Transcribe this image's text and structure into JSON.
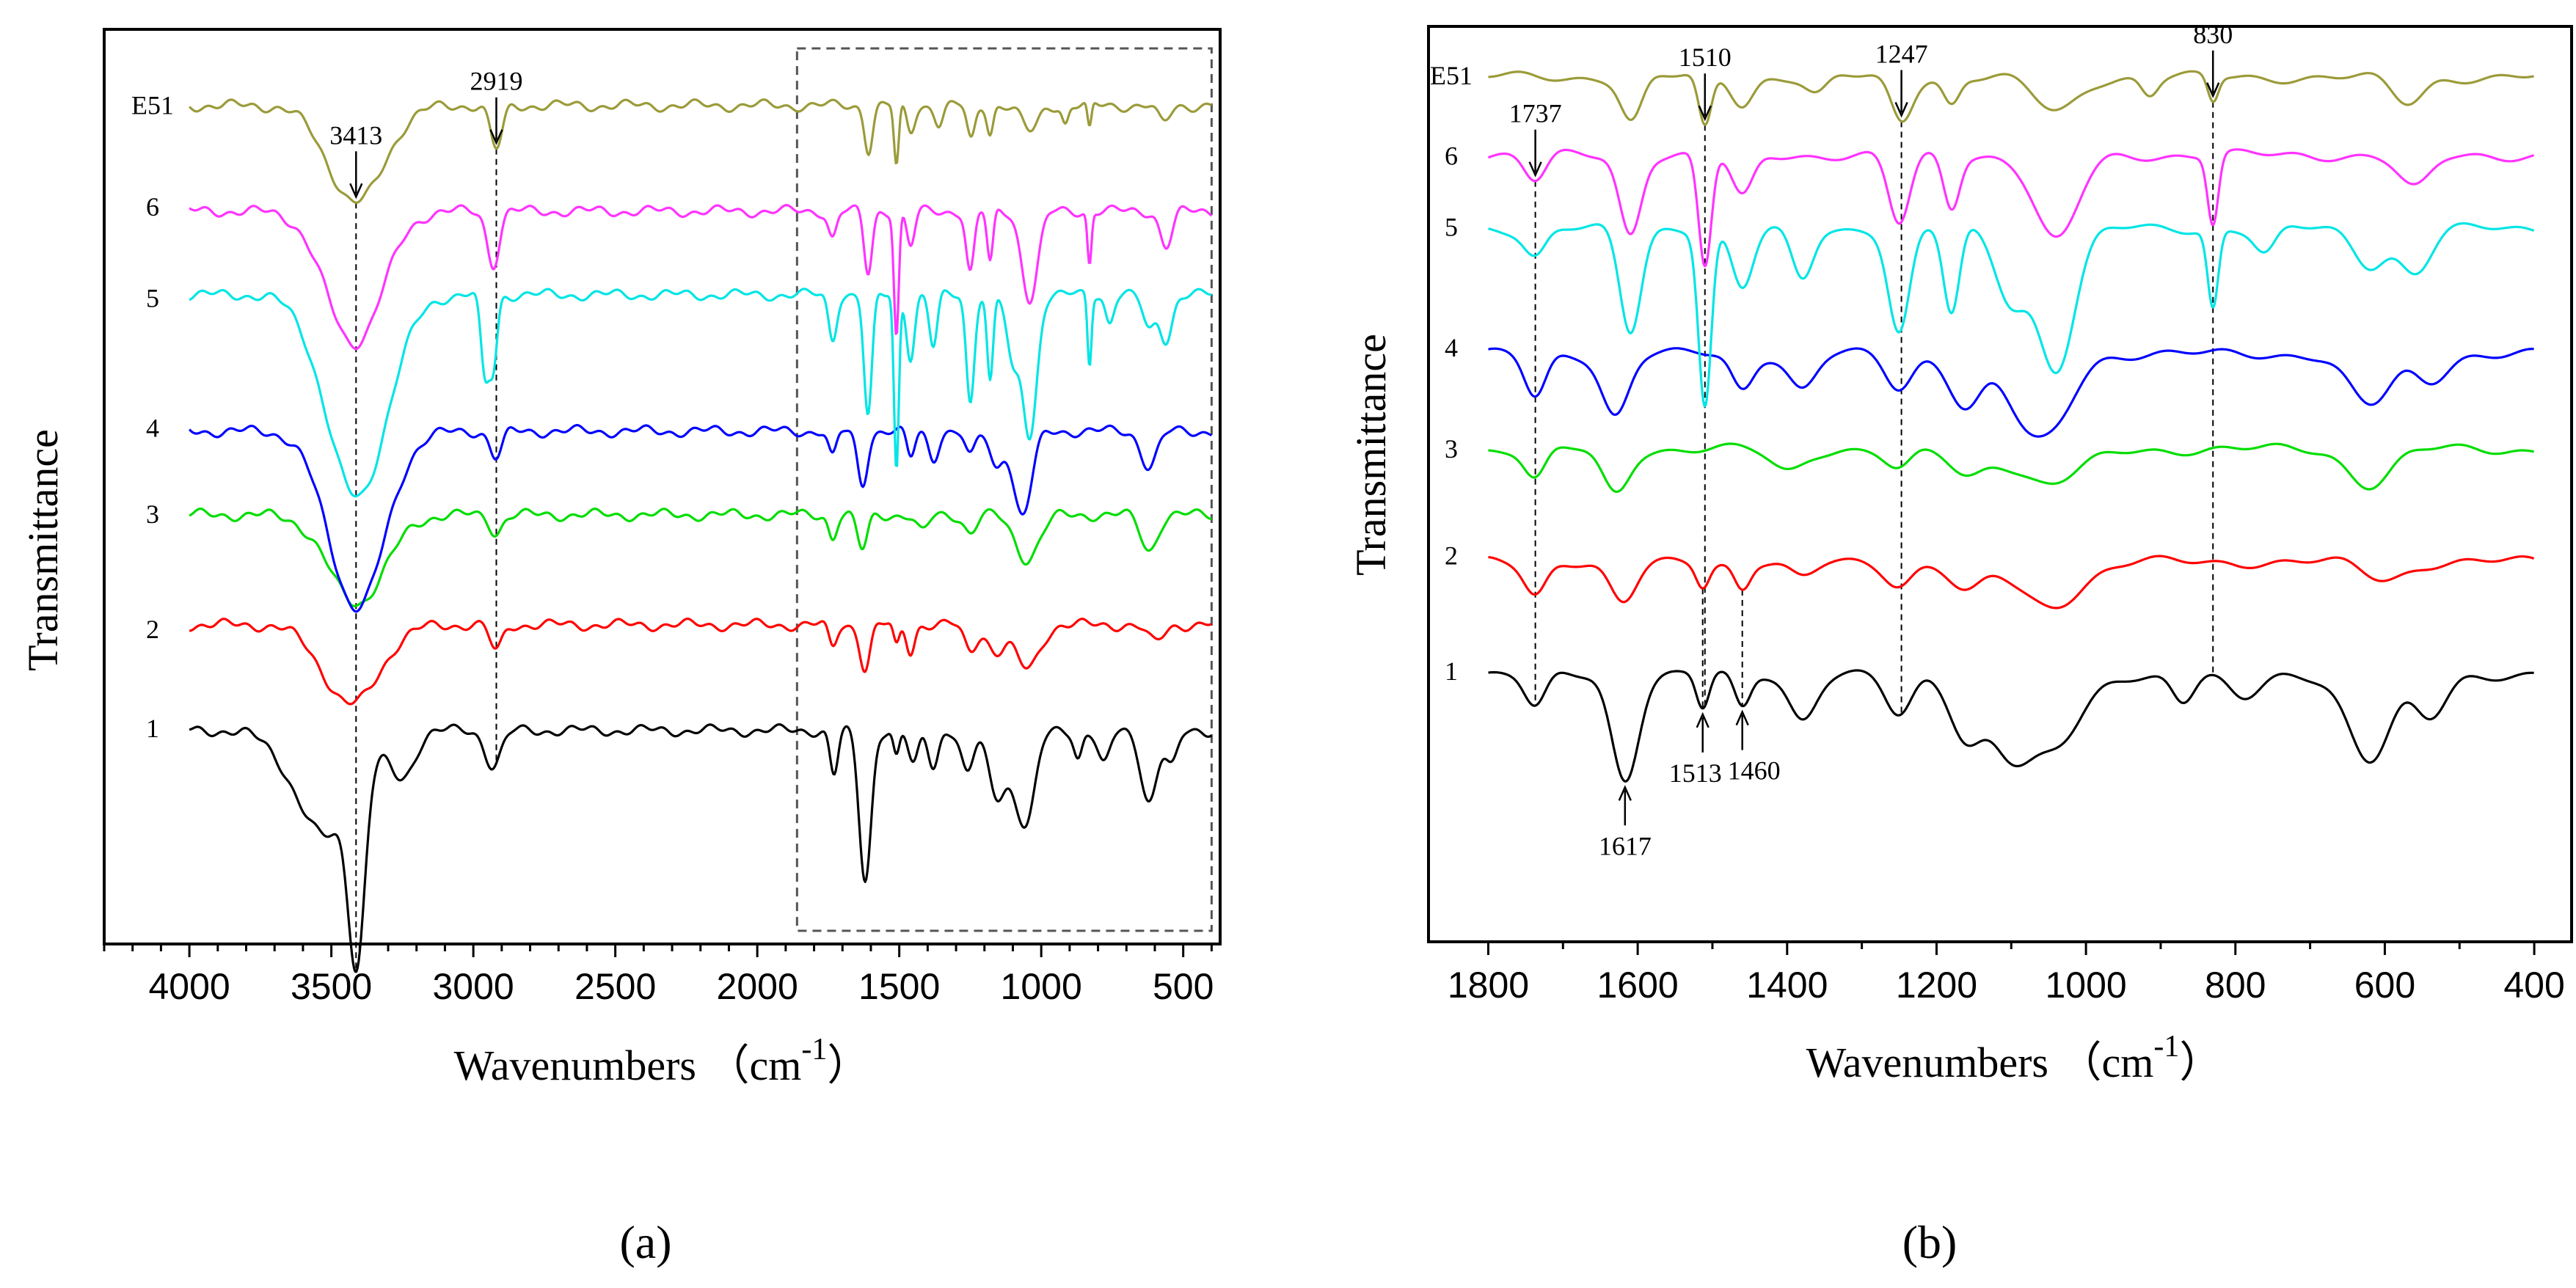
{
  "chart_data": [
    {
      "panel": "a",
      "type": "line",
      "panel_label": "(a)",
      "xlabel": "Wavenumbers",
      "xunit": "（cm",
      "xunit_sup": "-1",
      "xunit_close": "）",
      "ylabel": "Transmittance",
      "xlim": [
        4300,
        370
      ],
      "x_reversed": true,
      "xticks": [
        4000,
        3500,
        3000,
        2500,
        2000,
        1500,
        1000,
        500
      ],
      "xtick_labels": [
        "4000",
        "3500",
        "3000",
        "2500",
        "2000",
        "1500",
        "1000",
        "500"
      ],
      "xminor_step": 100,
      "highlight_box": {
        "x_from": 1860,
        "x_to": 400,
        "style": "dashed"
      },
      "annotations": [
        {
          "text": "3413",
          "x": 3413,
          "series": "E51",
          "marker": "arrow",
          "guide_line": true
        },
        {
          "text": "2919",
          "x": 2919,
          "series": "E51",
          "marker": "arrow",
          "guide_line": true
        }
      ],
      "series": [
        {
          "name": "1",
          "color": "#000000",
          "baseline": 0.78,
          "peaks": [
            [
              3520,
              0.12,
              150
            ],
            [
              3410,
              0.2,
              40
            ],
            [
              3250,
              0.05,
              60
            ],
            [
              2930,
              0.04,
              40
            ],
            [
              1730,
              0.05,
              20
            ],
            [
              1620,
              0.17,
              30
            ],
            [
              1510,
              0.03,
              15
            ],
            [
              1450,
              0.04,
              25
            ],
            [
              1380,
              0.04,
              25
            ],
            [
              1260,
              0.05,
              30
            ],
            [
              1160,
              0.07,
              40
            ],
            [
              1080,
              0.07,
              50
            ],
            [
              1040,
              0.06,
              40
            ],
            [
              870,
              0.03,
              20
            ],
            [
              780,
              0.04,
              30
            ],
            [
              620,
              0.08,
              40
            ],
            [
              540,
              0.04,
              30
            ]
          ]
        },
        {
          "name": "2",
          "color": "#ff0000",
          "baseline": 0.66,
          "peaks": [
            [
              3430,
              0.09,
              140
            ],
            [
              2920,
              0.03,
              30
            ],
            [
              1735,
              0.025,
              20
            ],
            [
              1620,
              0.05,
              25
            ],
            [
              1510,
              0.025,
              15
            ],
            [
              1460,
              0.03,
              20
            ],
            [
              1250,
              0.03,
              30
            ],
            [
              1160,
              0.03,
              40
            ],
            [
              1050,
              0.05,
              60
            ],
            [
              600,
              0.02,
              40
            ]
          ]
        },
        {
          "name": "3",
          "color": "#00dd00",
          "baseline": 0.535,
          "peaks": [
            [
              3410,
              0.1,
              140
            ],
            [
              2920,
              0.02,
              30
            ],
            [
              1735,
              0.025,
              20
            ],
            [
              1630,
              0.04,
              25
            ],
            [
              1420,
              0.02,
              30
            ],
            [
              1250,
              0.02,
              30
            ],
            [
              1050,
              0.05,
              60
            ],
            [
              620,
              0.04,
              40
            ]
          ]
        },
        {
          "name": "4",
          "color": "#0000ff",
          "baseline": 0.44,
          "peaks": [
            [
              3410,
              0.2,
              140
            ],
            [
              2920,
              0.03,
              30
            ],
            [
              1735,
              0.03,
              20
            ],
            [
              1630,
              0.06,
              25
            ],
            [
              1460,
              0.03,
              20
            ],
            [
              1380,
              0.03,
              25
            ],
            [
              1250,
              0.03,
              25
            ],
            [
              1160,
              0.04,
              30
            ],
            [
              1080,
              0.06,
              40
            ],
            [
              1050,
              0.05,
              40
            ],
            [
              620,
              0.04,
              40
            ]
          ]
        },
        {
          "name": "5",
          "color": "#00e5e5",
          "baseline": 0.285,
          "peaks": [
            [
              3410,
              0.23,
              150
            ],
            [
              2960,
              0.09,
              20
            ],
            [
              2930,
              0.08,
              20
            ],
            [
              1735,
              0.05,
              20
            ],
            [
              1610,
              0.14,
              20
            ],
            [
              1510,
              0.2,
              12
            ],
            [
              1460,
              0.07,
              20
            ],
            [
              1380,
              0.06,
              20
            ],
            [
              1250,
              0.12,
              20
            ],
            [
              1180,
              0.1,
              15
            ],
            [
              1100,
              0.08,
              30
            ],
            [
              1040,
              0.16,
              35
            ],
            [
              830,
              0.08,
              10
            ],
            [
              760,
              0.03,
              20
            ],
            [
              620,
              0.04,
              30
            ],
            [
              560,
              0.05,
              30
            ]
          ]
        },
        {
          "name": "6",
          "color": "#ff33ff",
          "baseline": 0.19,
          "peaks": [
            [
              3420,
              0.15,
              140
            ],
            [
              2930,
              0.06,
              30
            ],
            [
              1735,
              0.03,
              20
            ],
            [
              1610,
              0.07,
              20
            ],
            [
              1510,
              0.14,
              12
            ],
            [
              1460,
              0.04,
              20
            ],
            [
              1250,
              0.07,
              20
            ],
            [
              1180,
              0.06,
              15
            ],
            [
              1040,
              0.1,
              40
            ],
            [
              830,
              0.06,
              10
            ],
            [
              560,
              0.04,
              30
            ]
          ]
        },
        {
          "name": "E51",
          "color": "#9b9b3a",
          "baseline": 0.07,
          "peaks": [
            [
              3413,
              0.11,
              140
            ],
            [
              2919,
              0.05,
              30
            ],
            [
              1608,
              0.05,
              20
            ],
            [
              1510,
              0.07,
              12
            ],
            [
              1460,
              0.03,
              20
            ],
            [
              1360,
              0.02,
              20
            ],
            [
              1247,
              0.04,
              20
            ],
            [
              1180,
              0.03,
              15
            ],
            [
              1040,
              0.03,
              40
            ],
            [
              915,
              0.02,
              15
            ],
            [
              830,
              0.03,
              10
            ],
            [
              570,
              0.02,
              30
            ]
          ]
        }
      ]
    },
    {
      "panel": "b",
      "type": "line",
      "panel_label": "(b)",
      "xlabel": "Wavenumbers",
      "xunit": "（cm",
      "xunit_sup": "-1",
      "xunit_close": "）",
      "ylabel": "Transmittance",
      "xlim": [
        1880,
        350
      ],
      "x_reversed": true,
      "xticks": [
        1800,
        1600,
        1400,
        1200,
        1000,
        800,
        600,
        400
      ],
      "xtick_labels": [
        "1800",
        "1600",
        "1400",
        "1200",
        "1000",
        "800",
        "600",
        "400"
      ],
      "xminor_step": 100,
      "annotations": [
        {
          "text": "1737",
          "x": 1737,
          "series": "6",
          "marker": "arrow",
          "guide_line": true
        },
        {
          "text": "1510",
          "x": 1510,
          "series": "E51",
          "marker": "arrow",
          "guide_line": true
        },
        {
          "text": "1247",
          "x": 1247,
          "series": "E51",
          "marker": "arrow",
          "guide_line": true
        },
        {
          "text": "830",
          "x": 830,
          "series": "E51",
          "marker": "arrow",
          "guide_line": true
        },
        {
          "text": "1617",
          "x": 1617,
          "series": "1",
          "marker": "arrow-up"
        },
        {
          "text": "1513",
          "x": 1513,
          "series": "1",
          "marker": "arrow-up",
          "guide_line": true
        },
        {
          "text": "1460",
          "x": 1460,
          "series": "1",
          "marker": "arrow-up",
          "guide_line": true
        }
      ],
      "series": [
        {
          "name": "1",
          "color": "#000000",
          "baseline": 0.72,
          "peaks": [
            [
              1737,
              0.04,
              20
            ],
            [
              1617,
              0.12,
              25
            ],
            [
              1513,
              0.04,
              12
            ],
            [
              1460,
              0.04,
              15
            ],
            [
              1380,
              0.05,
              25
            ],
            [
              1250,
              0.05,
              25
            ],
            [
              1160,
              0.07,
              30
            ],
            [
              1100,
              0.08,
              40
            ],
            [
              1040,
              0.08,
              50
            ],
            [
              870,
              0.03,
              20
            ],
            [
              790,
              0.03,
              30
            ],
            [
              620,
              0.1,
              40
            ],
            [
              540,
              0.05,
              30
            ]
          ]
        },
        {
          "name": "2",
          "color": "#ff0000",
          "baseline": 0.59,
          "peaks": [
            [
              1737,
              0.035,
              20
            ],
            [
              1620,
              0.05,
              25
            ],
            [
              1513,
              0.025,
              12
            ],
            [
              1460,
              0.03,
              15
            ],
            [
              1380,
              0.02,
              25
            ],
            [
              1250,
              0.025,
              25
            ],
            [
              1160,
              0.035,
              30
            ],
            [
              1050,
              0.05,
              60
            ],
            [
              600,
              0.02,
              40
            ]
          ]
        },
        {
          "name": "3",
          "color": "#00dd00",
          "baseline": 0.46,
          "peaks": [
            [
              1737,
              0.035,
              20
            ],
            [
              1630,
              0.05,
              25
            ],
            [
              1400,
              0.025,
              30
            ],
            [
              1250,
              0.025,
              25
            ],
            [
              1160,
              0.03,
              30
            ],
            [
              1050,
              0.04,
              60
            ],
            [
              620,
              0.04,
              40
            ]
          ]
        },
        {
          "name": "4",
          "color": "#0000ff",
          "baseline": 0.35,
          "peaks": [
            [
              1737,
              0.05,
              20
            ],
            [
              1630,
              0.07,
              25
            ],
            [
              1460,
              0.04,
              20
            ],
            [
              1380,
              0.04,
              25
            ],
            [
              1250,
              0.04,
              25
            ],
            [
              1160,
              0.06,
              30
            ],
            [
              1080,
              0.07,
              40
            ],
            [
              1040,
              0.06,
              40
            ],
            [
              620,
              0.06,
              40
            ],
            [
              540,
              0.03,
              30
            ]
          ]
        },
        {
          "name": "5",
          "color": "#00e5e5",
          "baseline": 0.205,
          "peaks": [
            [
              1737,
              0.03,
              20
            ],
            [
              1610,
              0.12,
              20
            ],
            [
              1510,
              0.2,
              12
            ],
            [
              1460,
              0.07,
              20
            ],
            [
              1380,
              0.06,
              20
            ],
            [
              1250,
              0.12,
              20
            ],
            [
              1180,
              0.1,
              15
            ],
            [
              1100,
              0.08,
              30
            ],
            [
              1040,
              0.16,
              35
            ],
            [
              830,
              0.09,
              10
            ],
            [
              760,
              0.03,
              20
            ],
            [
              620,
              0.04,
              30
            ],
            [
              560,
              0.05,
              30
            ]
          ]
        },
        {
          "name": "6",
          "color": "#ff33ff",
          "baseline": 0.12,
          "peaks": [
            [
              1737,
              0.03,
              20
            ],
            [
              1610,
              0.09,
              20
            ],
            [
              1510,
              0.13,
              12
            ],
            [
              1460,
              0.05,
              20
            ],
            [
              1250,
              0.08,
              20
            ],
            [
              1180,
              0.06,
              15
            ],
            [
              1040,
              0.1,
              40
            ],
            [
              830,
              0.08,
              10
            ],
            [
              560,
              0.04,
              30
            ]
          ]
        },
        {
          "name": "E51",
          "color": "#9b9b3a",
          "baseline": 0.03,
          "peaks": [
            [
              1608,
              0.05,
              20
            ],
            [
              1510,
              0.06,
              12
            ],
            [
              1460,
              0.03,
              20
            ],
            [
              1360,
              0.02,
              20
            ],
            [
              1247,
              0.05,
              20
            ],
            [
              1180,
              0.03,
              15
            ],
            [
              1040,
              0.04,
              40
            ],
            [
              915,
              0.02,
              15
            ],
            [
              830,
              0.03,
              10
            ],
            [
              570,
              0.03,
              30
            ]
          ]
        }
      ]
    }
  ]
}
